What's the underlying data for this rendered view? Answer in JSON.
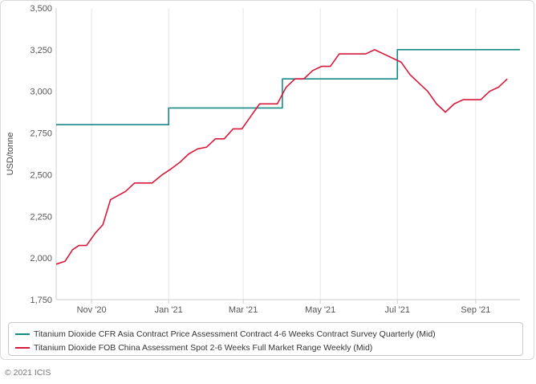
{
  "chart_data": {
    "type": "line",
    "ylabel": "USD/tonne",
    "xlabel": "",
    "ylim": [
      1750,
      3500
    ],
    "y_ticks": [
      "1,750",
      "2,000",
      "2,250",
      "2,500",
      "2,750",
      "3,000",
      "3,250",
      "3,500"
    ],
    "y_tick_values": [
      1750,
      2000,
      2250,
      2500,
      2750,
      3000,
      3250,
      3500
    ],
    "x_range": [
      "2020-10-04",
      "2021-10-06"
    ],
    "x_ticks": [
      {
        "label": "Nov '20",
        "date": "2020-11-01"
      },
      {
        "label": "Jan '21",
        "date": "2021-01-01"
      },
      {
        "label": "Mar '21",
        "date": "2021-03-01"
      },
      {
        "label": "May '21",
        "date": "2021-05-01"
      },
      {
        "label": "Jul '21",
        "date": "2021-07-01"
      },
      {
        "label": "Sep '21",
        "date": "2021-09-01"
      }
    ],
    "grid": "vertical",
    "legend_position": "bottom",
    "series": [
      {
        "name": "Titanium Dioxide CFR Asia Contract Price Assessment Contract 4-6 Weeks Contract Survey Quarterly (Mid)",
        "color": "#1a8a86",
        "step": true,
        "points": [
          [
            "2020-10-04",
            2800
          ],
          [
            "2021-01-01",
            2800
          ],
          [
            "2021-01-01",
            2900
          ],
          [
            "2021-04-01",
            2900
          ],
          [
            "2021-04-01",
            3075
          ],
          [
            "2021-07-01",
            3075
          ],
          [
            "2021-07-01",
            3250
          ],
          [
            "2021-10-06",
            3250
          ]
        ]
      },
      {
        "name": "Titanium Dioxide FOB China Assessment Spot 2-6 Weeks Full Market Range Weekly (Mid)",
        "color": "#d7193b",
        "step": false,
        "points": [
          [
            "2020-10-04",
            1963
          ],
          [
            "2020-10-11",
            1980
          ],
          [
            "2020-10-17",
            2050
          ],
          [
            "2020-10-22",
            2075
          ],
          [
            "2020-10-28",
            2075
          ],
          [
            "2020-11-04",
            2150
          ],
          [
            "2020-11-10",
            2200
          ],
          [
            "2020-11-16",
            2350
          ],
          [
            "2020-11-28",
            2400
          ],
          [
            "2020-12-05",
            2450
          ],
          [
            "2020-12-19",
            2450
          ],
          [
            "2020-12-27",
            2500
          ],
          [
            "2021-01-03",
            2535
          ],
          [
            "2021-01-10",
            2575
          ],
          [
            "2021-01-17",
            2625
          ],
          [
            "2021-01-24",
            2655
          ],
          [
            "2021-01-31",
            2665
          ],
          [
            "2021-02-07",
            2715
          ],
          [
            "2021-02-14",
            2715
          ],
          [
            "2021-02-21",
            2775
          ],
          [
            "2021-02-28",
            2775
          ],
          [
            "2021-03-07",
            2850
          ],
          [
            "2021-03-14",
            2925
          ],
          [
            "2021-03-21",
            2925
          ],
          [
            "2021-03-28",
            2925
          ],
          [
            "2021-04-04",
            3025
          ],
          [
            "2021-04-11",
            3075
          ],
          [
            "2021-04-18",
            3075
          ],
          [
            "2021-04-25",
            3125
          ],
          [
            "2021-05-02",
            3150
          ],
          [
            "2021-05-09",
            3150
          ],
          [
            "2021-05-16",
            3225
          ],
          [
            "2021-05-23",
            3225
          ],
          [
            "2021-05-30",
            3225
          ],
          [
            "2021-06-06",
            3225
          ],
          [
            "2021-06-13",
            3250
          ],
          [
            "2021-06-20",
            3225
          ],
          [
            "2021-06-27",
            3200
          ],
          [
            "2021-07-04",
            3175
          ],
          [
            "2021-07-11",
            3100
          ],
          [
            "2021-07-18",
            3050
          ],
          [
            "2021-07-25",
            3000
          ],
          [
            "2021-08-01",
            2925
          ],
          [
            "2021-08-08",
            2875
          ],
          [
            "2021-08-15",
            2925
          ],
          [
            "2021-08-22",
            2950
          ],
          [
            "2021-08-29",
            2950
          ],
          [
            "2021-09-05",
            2950
          ],
          [
            "2021-09-12",
            3000
          ],
          [
            "2021-09-19",
            3025
          ],
          [
            "2021-09-26",
            3075
          ]
        ]
      }
    ]
  },
  "footer": {
    "copyright": "© 2021 ICIS"
  }
}
